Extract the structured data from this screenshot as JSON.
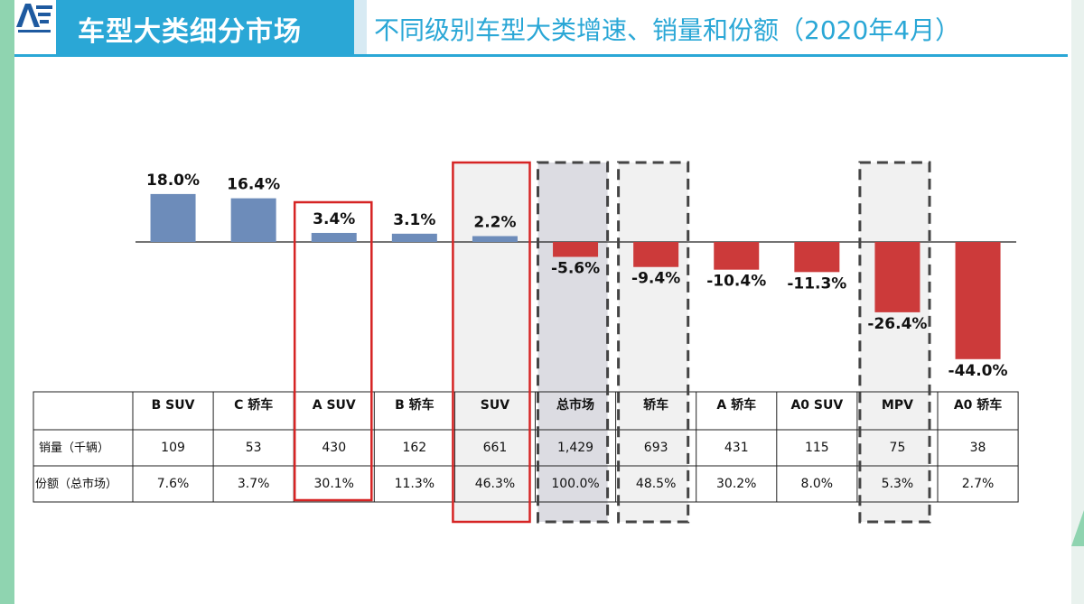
{
  "header": {
    "title": "车型大类细分市场",
    "subtitle": "不同级别车型大类增速、销量和份额（2020年4月）"
  },
  "colors": {
    "positive": "#6d8cba",
    "negative": "#cc3a3a",
    "title_blue": "#2aa7d6",
    "highlight_red": "#d62424",
    "highlight_dash": "#444444",
    "highlight_gray_fill": "#dcdce2",
    "highlight_light_fill": "#f1f1f1"
  },
  "chart_data": {
    "type": "bar",
    "categories": [
      "B SUV",
      "C 轿车",
      "A SUV",
      "B 轿车",
      "SUV",
      "总市场",
      "轿车",
      "A 轿车",
      "A0 SUV",
      "MPV",
      "A0 轿车"
    ],
    "series": [
      {
        "values": [
          18.0,
          16.4,
          3.4,
          3.1,
          2.2,
          -5.6,
          -9.4,
          -10.4,
          -11.3,
          -26.4,
          -44.0
        ]
      }
    ],
    "data_labels": [
      "18.0%",
      "16.4%",
      "3.4%",
      "3.1%",
      "2.2%",
      "-5.6%",
      "-9.4%",
      "-10.4%",
      "-11.3%",
      "-26.4%",
      "-44.0%"
    ],
    "ylim": [
      -44,
      22
    ],
    "grid": false,
    "table": {
      "row_labels": [
        "销量（千辆）",
        "份额（总市场）"
      ],
      "sales": [
        "109",
        "53",
        "430",
        "162",
        "661",
        "1,429",
        "693",
        "431",
        "115",
        "75",
        "38"
      ],
      "share": [
        "7.6%",
        "3.7%",
        "30.1%",
        "11.3%",
        "46.3%",
        "100.0%",
        "48.5%",
        "30.2%",
        "8.0%",
        "5.3%",
        "2.7%"
      ]
    },
    "highlights": {
      "red_solid": [
        "A SUV",
        "SUV"
      ],
      "dashed_gray": [
        "总市场"
      ],
      "dashed_light": [
        "轿车",
        "MPV"
      ]
    }
  }
}
